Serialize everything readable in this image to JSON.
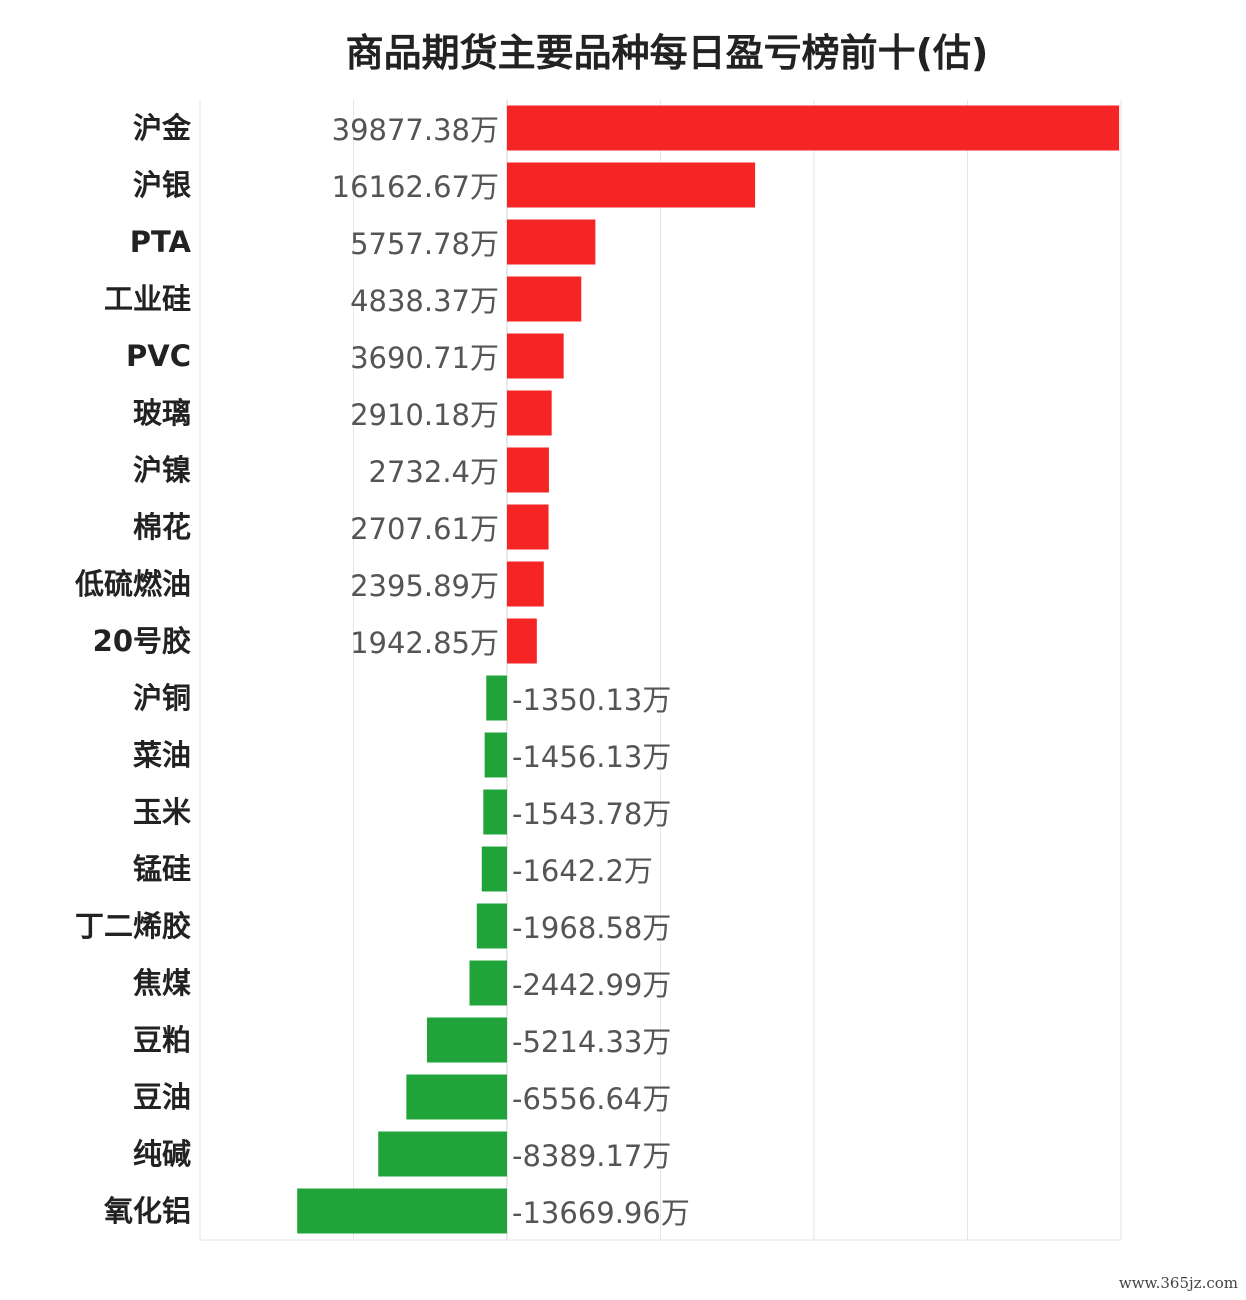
{
  "chart_data": {
    "type": "bar",
    "orientation": "horizontal",
    "title": "商品期货主要品种每日盈亏榜前十(估)",
    "unit_suffix": "万",
    "categories": [
      "沪金",
      "沪银",
      "PTA",
      "工业硅",
      "PVC",
      "玻璃",
      "沪镍",
      "棉花",
      "低硫燃油",
      "20号胶",
      "沪铜",
      "菜油",
      "玉米",
      "锰硅",
      "丁二烯胶",
      "焦煤",
      "豆粕",
      "豆油",
      "纯碱",
      "氧化铝"
    ],
    "values": [
      39877.38,
      16162.67,
      5757.78,
      4838.37,
      3690.71,
      2910.18,
      2732.4,
      2707.61,
      2395.89,
      1942.85,
      -1350.13,
      -1456.13,
      -1543.78,
      -1642.2,
      -1968.58,
      -2442.99,
      -5214.33,
      -6556.64,
      -8389.17,
      -13669.96
    ],
    "value_labels": [
      "39877.38万",
      "16162.67万",
      "5757.78万",
      "4838.37万",
      "3690.71万",
      "2910.18万",
      "2732.4万",
      "2707.61万",
      "2395.89万",
      "1942.85万",
      "-1350.13万",
      "-1456.13万",
      "-1543.78万",
      "-1642.2万",
      "-1968.58万",
      "-2442.99万",
      "-5214.33万",
      "-6556.64万",
      "-8389.17万",
      "-13669.96万"
    ],
    "xlim": [
      -20000,
      40000
    ],
    "grid": true,
    "colors": {
      "positive": "#f52526",
      "negative": "#20a43a",
      "grid": "#e6e6e6"
    }
  },
  "watermark": "www.365jz.com"
}
